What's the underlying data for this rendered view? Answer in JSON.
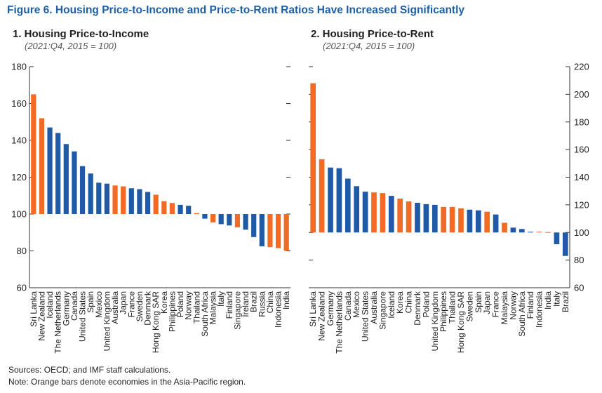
{
  "figure": {
    "title": "Figure 6. Housing Price-to-Income and Price-to-Rent Ratios Have Increased Significantly",
    "sources": "Sources: OECD; and IMF staff calculations.",
    "note": "Note: Orange bars denote economies in the Asia-Pacific region."
  },
  "colors": {
    "asia_pacific": "#f26a24",
    "other": "#1f5aa6",
    "axis": "#333333",
    "grid": "#9a9a9a"
  },
  "chart_data": [
    {
      "type": "bar",
      "title": "1. Housing Price-to-Income",
      "subtitle": "(2021:Q4, 2015 = 100)",
      "baseline": 100,
      "ylim": [
        60,
        180
      ],
      "yticks": [
        60,
        80,
        100,
        120,
        140,
        160,
        "180"
      ],
      "ytick_labels": [
        "60",
        "80",
        "100",
        "120",
        "140",
        "160",
        "180"
      ],
      "axis_side": "left",
      "categories": [
        "Sri Lanka",
        "New Zealand",
        "Iceland",
        "The Netherlands",
        "Germany",
        "Canada",
        "United States",
        "Spain",
        "Mexico",
        "United Kingdom",
        "Australia",
        "Japan",
        "France",
        "Sweden",
        "Denmark",
        "Hong Kong SAR",
        "Korea",
        "Philippines",
        "Poland",
        "Norway",
        "Thailand",
        "South Africa",
        "Malaysia",
        "Italy",
        "Finland",
        "Singapore",
        "Ireland",
        "Brazil",
        "Russia",
        "China",
        "Indonesia",
        "India"
      ],
      "values": [
        165,
        152,
        147,
        144,
        138,
        134,
        126,
        122,
        117,
        116.5,
        115.5,
        115,
        114,
        113.5,
        112,
        110.5,
        107,
        106,
        105,
        104.5,
        100.5,
        97.5,
        95.5,
        94.5,
        93.8,
        92.8,
        91.5,
        87.5,
        82.5,
        82,
        81.5,
        80
      ],
      "asia_pacific": [
        true,
        true,
        false,
        false,
        false,
        false,
        false,
        false,
        false,
        false,
        true,
        true,
        false,
        false,
        false,
        true,
        true,
        true,
        false,
        false,
        true,
        false,
        true,
        false,
        false,
        true,
        false,
        false,
        false,
        true,
        true,
        true
      ]
    },
    {
      "type": "bar",
      "title": "2. Housing Price-to-Rent",
      "subtitle": "(2021:Q4, 2015 = 100)",
      "baseline": 100,
      "ylim": [
        60,
        220
      ],
      "yticks": [
        60,
        80,
        100,
        120,
        140,
        160,
        180,
        200,
        220
      ],
      "ytick_labels": [
        "60",
        "80",
        "100",
        "120",
        "140",
        "160",
        "180",
        "200",
        "220"
      ],
      "axis_side": "right",
      "categories": [
        "Sri Lanka",
        "New Zealand",
        "Germany",
        "The Netherlands",
        "Canada",
        "Mexico",
        "United States",
        "Australia",
        "Singapore",
        "Iceland",
        "Korea",
        "China",
        "Denmark",
        "Poland",
        "United Kingdom",
        "Philippines",
        "Thailand",
        "Hong Kong SAR",
        "Sweden",
        "Spain",
        "Japan",
        "France",
        "Malaysia",
        "Norway",
        "South Africa",
        "Finland",
        "Indonesia",
        "India",
        "Italy",
        "Brazil"
      ],
      "values": [
        208,
        153,
        147,
        146.5,
        139,
        133.5,
        129.5,
        129,
        128.5,
        126.5,
        124.5,
        122.5,
        121.5,
        120.5,
        120,
        118.5,
        118.5,
        117.5,
        116.5,
        116,
        115,
        113,
        107,
        103.5,
        102.5,
        100.5,
        100.5,
        100.3,
        91.5,
        83
      ],
      "asia_pacific": [
        true,
        true,
        false,
        false,
        false,
        false,
        false,
        true,
        true,
        false,
        true,
        true,
        false,
        false,
        false,
        true,
        true,
        true,
        false,
        false,
        true,
        false,
        true,
        false,
        false,
        false,
        true,
        true,
        false,
        false
      ]
    }
  ]
}
